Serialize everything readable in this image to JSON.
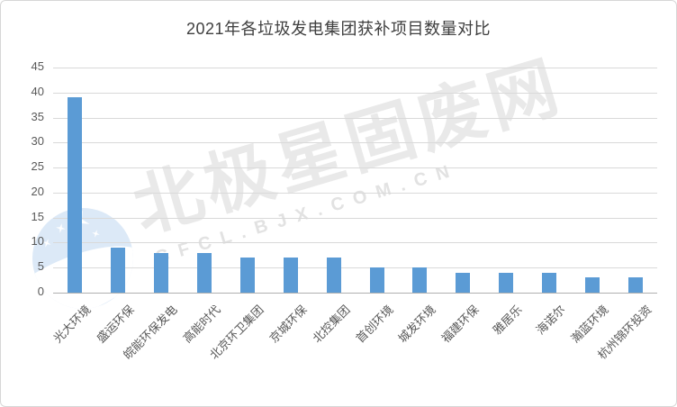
{
  "chart_data": {
    "type": "bar",
    "title": "2021年各垃圾发电集团获补项目数量对比",
    "categories": [
      "光大环境",
      "盛运环保",
      "皖能环保发电",
      "高能时代",
      "北京环卫集团",
      "京城环保",
      "北控集团",
      "首创环境",
      "城发环境",
      "福建环保",
      "雅居乐",
      "海诺尔",
      "瀚蓝环境",
      "杭州锦环投资"
    ],
    "values": [
      39,
      9,
      8,
      8,
      7,
      7,
      7,
      5,
      5,
      4,
      4,
      4,
      3,
      3
    ],
    "xlabel": "",
    "ylabel": "",
    "ylim": [
      0,
      45
    ],
    "yticks": [
      0,
      5,
      10,
      15,
      20,
      25,
      30,
      35,
      40,
      45
    ],
    "grid": "horizontal",
    "legend": "none",
    "bar_color": "#5B9BD5"
  },
  "watermark": {
    "brand_text": "北极星固废网",
    "domain_text": "GFCL.BJX.COM.CN",
    "logo_icon": "polestar-logo"
  },
  "colors": {
    "bar": "#5B9BD5",
    "gridline": "#d9d9d9",
    "axis_line": "#b0b0b0",
    "tick_text": "#595959",
    "title_text": "#3f3f3f",
    "watermark_text": "#e9e9e9",
    "logo_fill": "#dce9f7",
    "card_border": "#d7d7d7"
  }
}
